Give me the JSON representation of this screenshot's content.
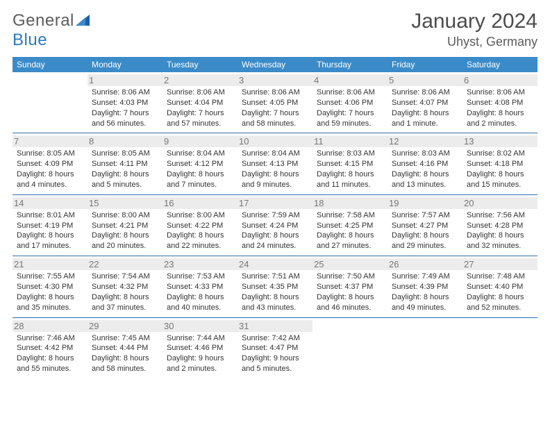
{
  "logo": {
    "word1": "General",
    "word2": "Blue"
  },
  "title": {
    "month": "January 2024",
    "location": "Uhyst, Germany"
  },
  "colors": {
    "header_bg": "#3b8bc9",
    "header_text": "#ffffff",
    "row_divider": "#2f6fa8",
    "daynum_bg": "#ececec",
    "daynum_color": "#777777",
    "body_text": "#333333",
    "logo_mark": "#1d5fa5"
  },
  "calendar": {
    "columns": [
      "Sunday",
      "Monday",
      "Tuesday",
      "Wednesday",
      "Thursday",
      "Friday",
      "Saturday"
    ],
    "start_offset": 1,
    "days": [
      {
        "n": 1,
        "sunrise": "8:06 AM",
        "sunset": "4:03 PM",
        "daylight": "7 hours and 56 minutes."
      },
      {
        "n": 2,
        "sunrise": "8:06 AM",
        "sunset": "4:04 PM",
        "daylight": "7 hours and 57 minutes."
      },
      {
        "n": 3,
        "sunrise": "8:06 AM",
        "sunset": "4:05 PM",
        "daylight": "7 hours and 58 minutes."
      },
      {
        "n": 4,
        "sunrise": "8:06 AM",
        "sunset": "4:06 PM",
        "daylight": "7 hours and 59 minutes."
      },
      {
        "n": 5,
        "sunrise": "8:06 AM",
        "sunset": "4:07 PM",
        "daylight": "8 hours and 1 minute."
      },
      {
        "n": 6,
        "sunrise": "8:06 AM",
        "sunset": "4:08 PM",
        "daylight": "8 hours and 2 minutes."
      },
      {
        "n": 7,
        "sunrise": "8:05 AM",
        "sunset": "4:09 PM",
        "daylight": "8 hours and 4 minutes."
      },
      {
        "n": 8,
        "sunrise": "8:05 AM",
        "sunset": "4:11 PM",
        "daylight": "8 hours and 5 minutes."
      },
      {
        "n": 9,
        "sunrise": "8:04 AM",
        "sunset": "4:12 PM",
        "daylight": "8 hours and 7 minutes."
      },
      {
        "n": 10,
        "sunrise": "8:04 AM",
        "sunset": "4:13 PM",
        "daylight": "8 hours and 9 minutes."
      },
      {
        "n": 11,
        "sunrise": "8:03 AM",
        "sunset": "4:15 PM",
        "daylight": "8 hours and 11 minutes."
      },
      {
        "n": 12,
        "sunrise": "8:03 AM",
        "sunset": "4:16 PM",
        "daylight": "8 hours and 13 minutes."
      },
      {
        "n": 13,
        "sunrise": "8:02 AM",
        "sunset": "4:18 PM",
        "daylight": "8 hours and 15 minutes."
      },
      {
        "n": 14,
        "sunrise": "8:01 AM",
        "sunset": "4:19 PM",
        "daylight": "8 hours and 17 minutes."
      },
      {
        "n": 15,
        "sunrise": "8:00 AM",
        "sunset": "4:21 PM",
        "daylight": "8 hours and 20 minutes."
      },
      {
        "n": 16,
        "sunrise": "8:00 AM",
        "sunset": "4:22 PM",
        "daylight": "8 hours and 22 minutes."
      },
      {
        "n": 17,
        "sunrise": "7:59 AM",
        "sunset": "4:24 PM",
        "daylight": "8 hours and 24 minutes."
      },
      {
        "n": 18,
        "sunrise": "7:58 AM",
        "sunset": "4:25 PM",
        "daylight": "8 hours and 27 minutes."
      },
      {
        "n": 19,
        "sunrise": "7:57 AM",
        "sunset": "4:27 PM",
        "daylight": "8 hours and 29 minutes."
      },
      {
        "n": 20,
        "sunrise": "7:56 AM",
        "sunset": "4:28 PM",
        "daylight": "8 hours and 32 minutes."
      },
      {
        "n": 21,
        "sunrise": "7:55 AM",
        "sunset": "4:30 PM",
        "daylight": "8 hours and 35 minutes."
      },
      {
        "n": 22,
        "sunrise": "7:54 AM",
        "sunset": "4:32 PM",
        "daylight": "8 hours and 37 minutes."
      },
      {
        "n": 23,
        "sunrise": "7:53 AM",
        "sunset": "4:33 PM",
        "daylight": "8 hours and 40 minutes."
      },
      {
        "n": 24,
        "sunrise": "7:51 AM",
        "sunset": "4:35 PM",
        "daylight": "8 hours and 43 minutes."
      },
      {
        "n": 25,
        "sunrise": "7:50 AM",
        "sunset": "4:37 PM",
        "daylight": "8 hours and 46 minutes."
      },
      {
        "n": 26,
        "sunrise": "7:49 AM",
        "sunset": "4:39 PM",
        "daylight": "8 hours and 49 minutes."
      },
      {
        "n": 27,
        "sunrise": "7:48 AM",
        "sunset": "4:40 PM",
        "daylight": "8 hours and 52 minutes."
      },
      {
        "n": 28,
        "sunrise": "7:46 AM",
        "sunset": "4:42 PM",
        "daylight": "8 hours and 55 minutes."
      },
      {
        "n": 29,
        "sunrise": "7:45 AM",
        "sunset": "4:44 PM",
        "daylight": "8 hours and 58 minutes."
      },
      {
        "n": 30,
        "sunrise": "7:44 AM",
        "sunset": "4:46 PM",
        "daylight": "9 hours and 2 minutes."
      },
      {
        "n": 31,
        "sunrise": "7:42 AM",
        "sunset": "4:47 PM",
        "daylight": "9 hours and 5 minutes."
      }
    ],
    "labels": {
      "sunrise": "Sunrise:",
      "sunset": "Sunset:",
      "daylight": "Daylight:"
    }
  }
}
